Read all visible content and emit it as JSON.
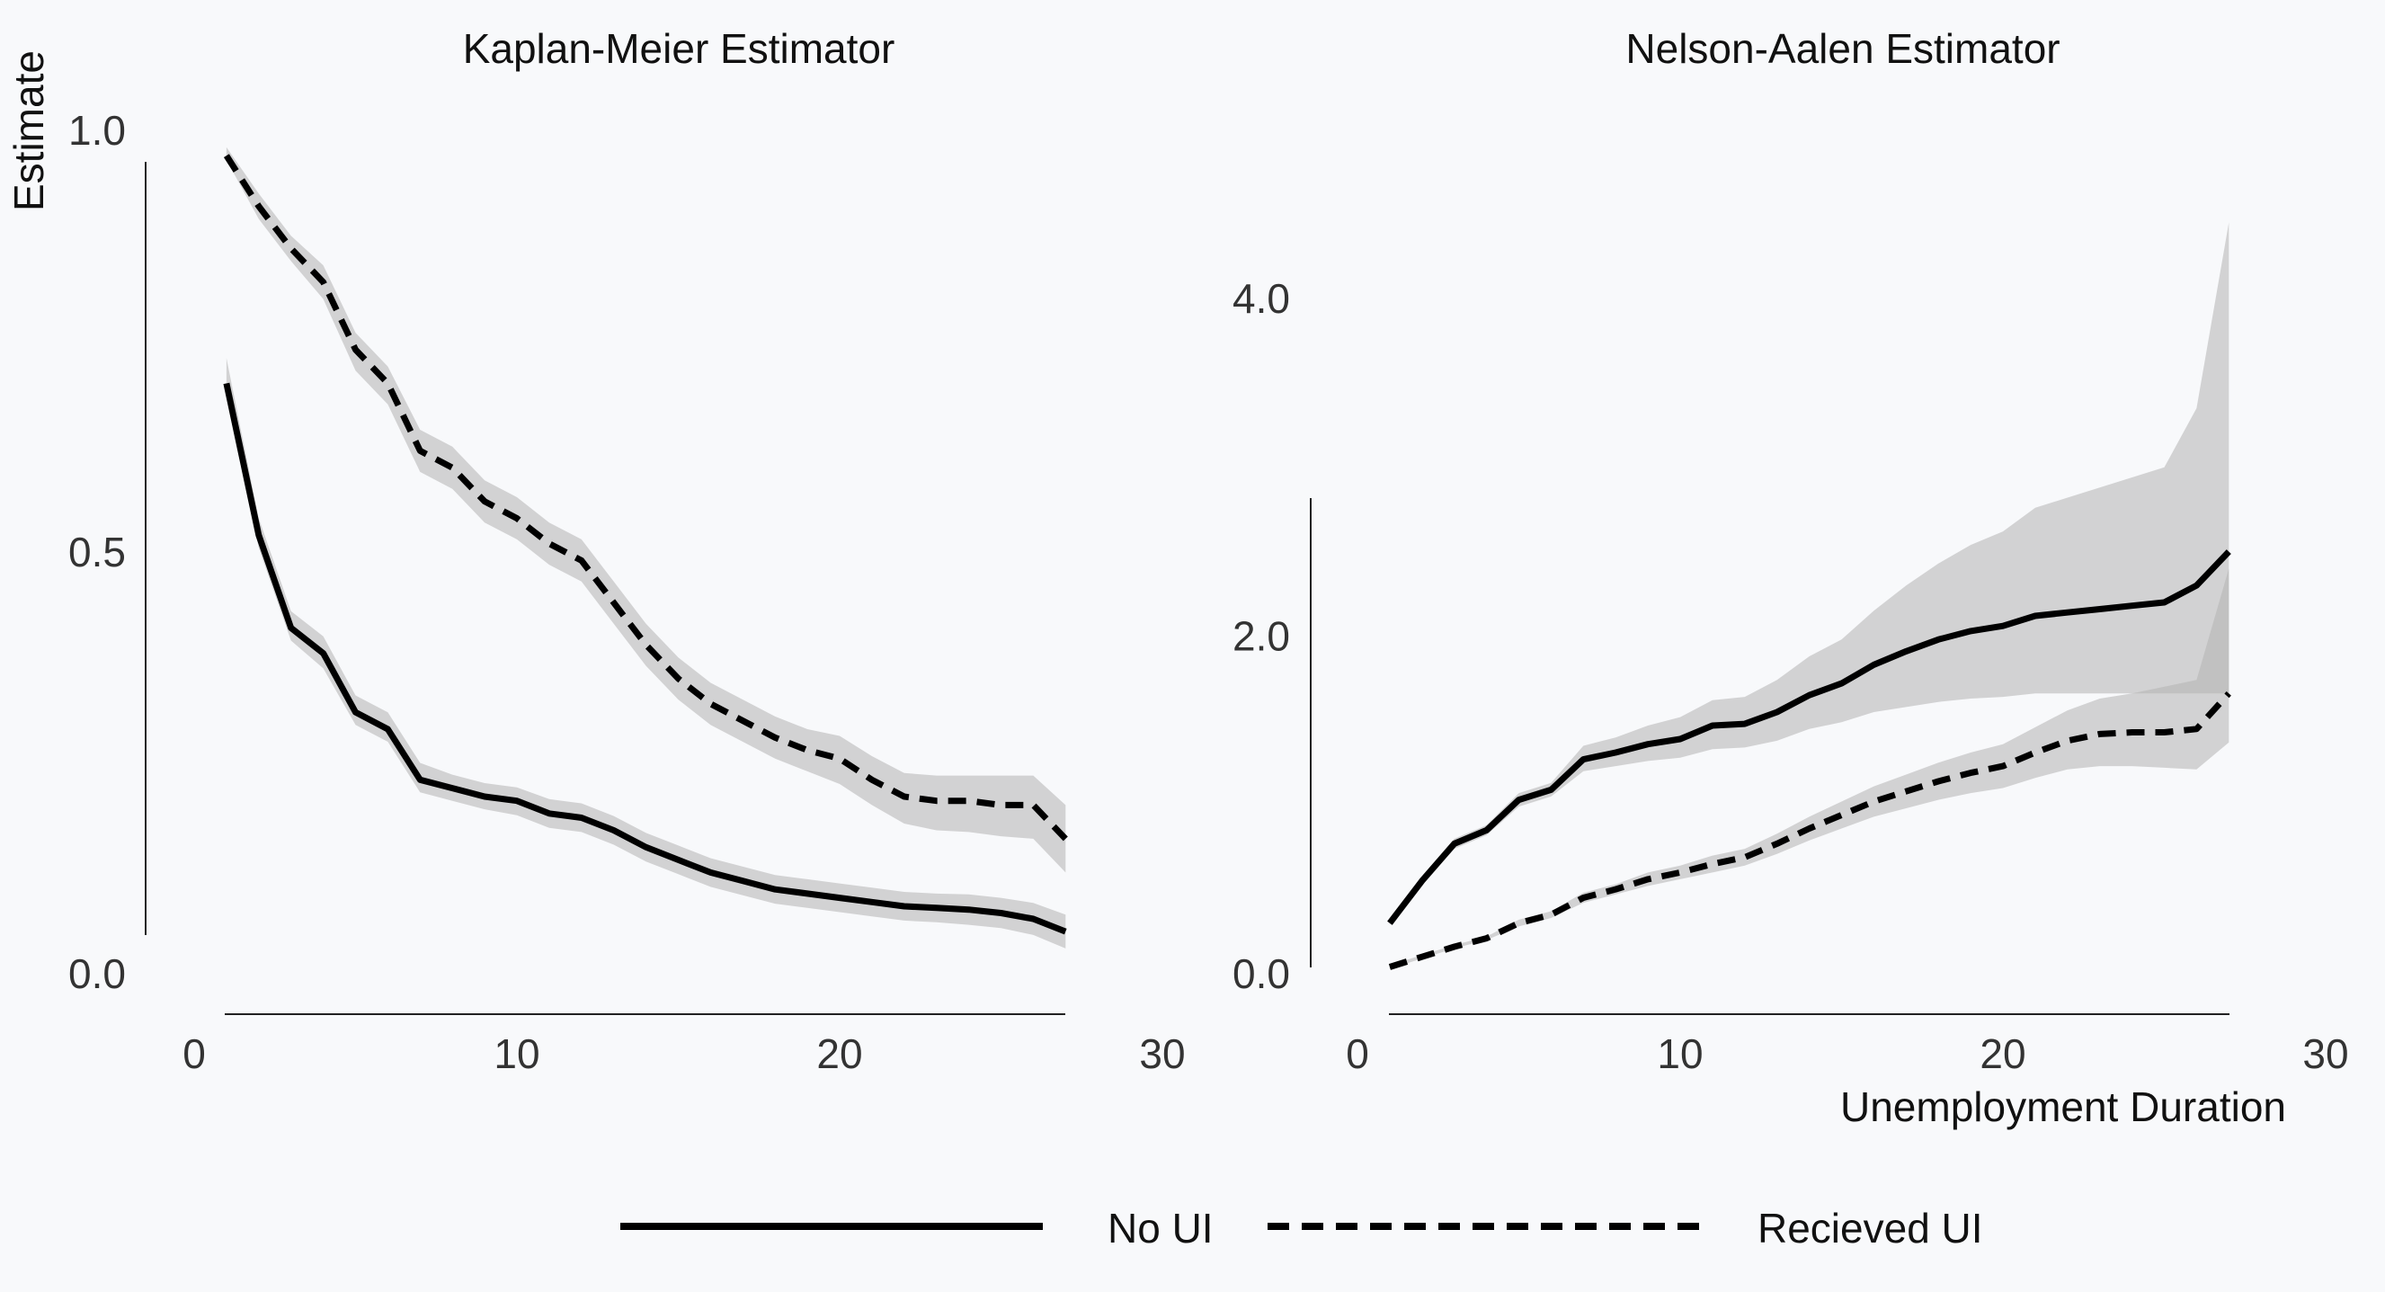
{
  "chart_data": [
    {
      "type": "line",
      "title": "Kaplan-Meier Estimator",
      "xlabel": "",
      "ylabel": "Estimate",
      "xlim": [
        0,
        30
      ],
      "ylim": [
        0.0,
        1.0
      ],
      "xticks": [
        0,
        10,
        20,
        30
      ],
      "xtick_labels": [
        "0",
        "10",
        "20",
        "30"
      ],
      "yticks": [
        0.0,
        0.5,
        1.0
      ],
      "ytick_labels": [
        "0.0",
        "0.5",
        "1.0"
      ],
      "grid": false,
      "series": [
        {
          "name": "No UI",
          "style": "solid",
          "x": [
            1,
            2,
            3,
            4,
            5,
            6,
            7,
            8,
            9,
            10,
            11,
            12,
            13,
            14,
            15,
            16,
            17,
            18,
            19,
            20,
            21,
            22,
            23,
            24,
            25,
            26,
            27
          ],
          "y": [
            0.7,
            0.52,
            0.41,
            0.38,
            0.31,
            0.29,
            0.23,
            0.22,
            0.21,
            0.205,
            0.19,
            0.185,
            0.17,
            0.15,
            0.135,
            0.12,
            0.11,
            0.1,
            0.095,
            0.09,
            0.085,
            0.08,
            0.078,
            0.076,
            0.072,
            0.065,
            0.05
          ],
          "lower": [
            0.685,
            0.505,
            0.395,
            0.362,
            0.295,
            0.275,
            0.215,
            0.205,
            0.195,
            0.188,
            0.173,
            0.168,
            0.153,
            0.133,
            0.118,
            0.103,
            0.093,
            0.083,
            0.078,
            0.073,
            0.068,
            0.063,
            0.061,
            0.058,
            0.054,
            0.046,
            0.03
          ],
          "upper": [
            0.73,
            0.54,
            0.43,
            0.4,
            0.33,
            0.31,
            0.25,
            0.236,
            0.226,
            0.221,
            0.207,
            0.202,
            0.187,
            0.167,
            0.152,
            0.137,
            0.127,
            0.117,
            0.112,
            0.107,
            0.102,
            0.097,
            0.095,
            0.094,
            0.09,
            0.084,
            0.07
          ]
        },
        {
          "name": "Recieved UI",
          "style": "dashed",
          "x": [
            1,
            2,
            3,
            4,
            5,
            6,
            7,
            8,
            9,
            10,
            11,
            12,
            13,
            14,
            15,
            16,
            17,
            18,
            19,
            20,
            21,
            22,
            23,
            24,
            25,
            26,
            27
          ],
          "y": [
            0.97,
            0.91,
            0.86,
            0.82,
            0.74,
            0.7,
            0.62,
            0.6,
            0.56,
            0.54,
            0.51,
            0.49,
            0.44,
            0.39,
            0.35,
            0.32,
            0.3,
            0.28,
            0.265,
            0.255,
            0.23,
            0.21,
            0.205,
            0.205,
            0.2,
            0.2,
            0.16
          ],
          "lower": [
            0.965,
            0.895,
            0.845,
            0.8,
            0.715,
            0.675,
            0.595,
            0.575,
            0.535,
            0.515,
            0.485,
            0.465,
            0.415,
            0.365,
            0.325,
            0.295,
            0.275,
            0.255,
            0.24,
            0.225,
            0.2,
            0.178,
            0.17,
            0.168,
            0.163,
            0.16,
            0.12
          ],
          "upper": [
            0.98,
            0.925,
            0.875,
            0.84,
            0.76,
            0.72,
            0.645,
            0.625,
            0.585,
            0.565,
            0.535,
            0.515,
            0.465,
            0.415,
            0.375,
            0.345,
            0.325,
            0.305,
            0.29,
            0.282,
            0.258,
            0.238,
            0.235,
            0.235,
            0.235,
            0.235,
            0.2
          ]
        }
      ]
    },
    {
      "type": "line",
      "title": "Nelson-Aalen Estimator",
      "xlabel": "Unemployment Duration",
      "ylabel": "",
      "xlim": [
        0,
        30
      ],
      "ylim": [
        0.0,
        4.0
      ],
      "xticks": [
        0,
        10,
        20,
        30
      ],
      "xtick_labels": [
        "0",
        "10",
        "20",
        "30"
      ],
      "yticks": [
        0.0,
        2.0,
        4.0
      ],
      "ytick_labels": [
        "0.0",
        "2.0",
        "4.0"
      ],
      "grid": false,
      "series": [
        {
          "name": "No UI",
          "style": "solid",
          "x": [
            1,
            2,
            3,
            4,
            5,
            6,
            7,
            8,
            9,
            10,
            11,
            12,
            13,
            14,
            15,
            16,
            17,
            18,
            19,
            20,
            21,
            22,
            23,
            24,
            25,
            26,
            27
          ],
          "y": [
            0.3,
            0.55,
            0.77,
            0.85,
            1.03,
            1.09,
            1.27,
            1.31,
            1.36,
            1.39,
            1.47,
            1.48,
            1.55,
            1.65,
            1.72,
            1.83,
            1.91,
            1.98,
            2.03,
            2.06,
            2.12,
            2.14,
            2.16,
            2.18,
            2.2,
            2.3,
            2.5
          ],
          "lower": [
            0.29,
            0.53,
            0.74,
            0.82,
            0.99,
            1.05,
            1.2,
            1.23,
            1.26,
            1.28,
            1.33,
            1.34,
            1.38,
            1.45,
            1.49,
            1.55,
            1.58,
            1.61,
            1.63,
            1.64,
            1.66,
            1.66,
            1.66,
            1.66,
            1.66,
            1.66,
            1.66
          ],
          "upper": [
            0.32,
            0.57,
            0.8,
            0.88,
            1.07,
            1.13,
            1.35,
            1.4,
            1.47,
            1.52,
            1.62,
            1.64,
            1.74,
            1.88,
            1.98,
            2.15,
            2.3,
            2.43,
            2.54,
            2.62,
            2.76,
            2.82,
            2.88,
            2.94,
            3.0,
            3.35,
            4.45
          ]
        },
        {
          "name": "Recieved UI",
          "style": "dashed",
          "x": [
            1,
            2,
            3,
            4,
            5,
            6,
            7,
            8,
            9,
            10,
            11,
            12,
            13,
            14,
            15,
            16,
            17,
            18,
            19,
            20,
            21,
            22,
            23,
            24,
            25,
            26,
            27
          ],
          "y": [
            0.04,
            0.1,
            0.16,
            0.21,
            0.3,
            0.35,
            0.45,
            0.5,
            0.56,
            0.6,
            0.65,
            0.69,
            0.77,
            0.86,
            0.94,
            1.02,
            1.08,
            1.14,
            1.19,
            1.23,
            1.31,
            1.38,
            1.42,
            1.43,
            1.43,
            1.45,
            1.66
          ],
          "lower": [
            0.03,
            0.09,
            0.15,
            0.2,
            0.28,
            0.33,
            0.42,
            0.47,
            0.52,
            0.56,
            0.6,
            0.64,
            0.71,
            0.79,
            0.86,
            0.93,
            0.98,
            1.03,
            1.07,
            1.1,
            1.16,
            1.21,
            1.23,
            1.23,
            1.22,
            1.21,
            1.37
          ],
          "upper": [
            0.05,
            0.11,
            0.17,
            0.22,
            0.32,
            0.37,
            0.48,
            0.53,
            0.6,
            0.64,
            0.7,
            0.74,
            0.83,
            0.93,
            1.02,
            1.11,
            1.18,
            1.25,
            1.31,
            1.36,
            1.46,
            1.56,
            1.63,
            1.66,
            1.7,
            1.74,
            2.4
          ]
        }
      ]
    }
  ],
  "legend": {
    "placement": "bottom-center",
    "items": [
      {
        "label": "No UI",
        "style": "solid"
      },
      {
        "label": "Recieved UI",
        "style": "dashed"
      }
    ]
  },
  "colors": {
    "line": "#000000",
    "band": "#b3b3b3",
    "background": "#f8f9fb"
  }
}
